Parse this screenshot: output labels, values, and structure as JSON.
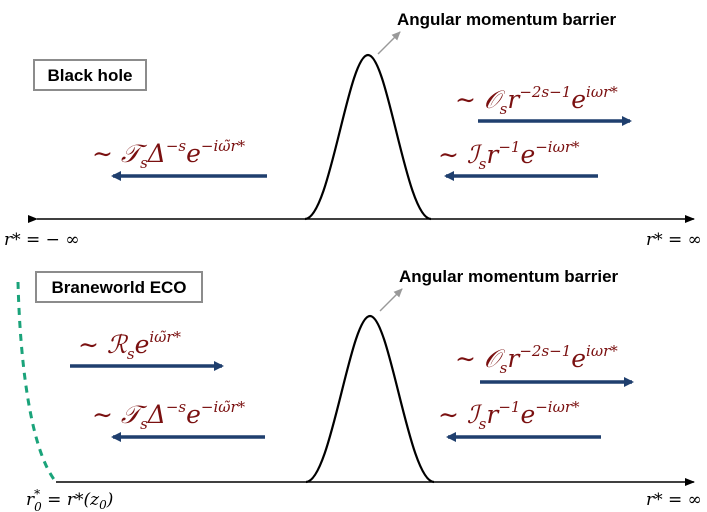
{
  "colors": {
    "arrow": "#1f3f6e",
    "math_text": "#7a1010",
    "curve": "#000000",
    "pointer": "#999999",
    "dashed_boundary": "#1aa37a",
    "box_border": "#8c8c8c"
  },
  "top_panel": {
    "title": "Black hole",
    "barrier_label": "Angular momentum barrier",
    "outgoing_right": {
      "lead": "∼ ",
      "sym": "𝒪",
      "sub": "s",
      "base": "r",
      "exp1": "−2s−1",
      "e": "e",
      "exp2": "iωr*"
    },
    "incoming_right": {
      "lead": "∼ ",
      "sym": "ℐ",
      "sub": "s",
      "base": "r",
      "exp1": "−1",
      "e": "e",
      "exp2": "−iωr*"
    },
    "transmitted_left": {
      "lead": "∼ ",
      "sym": "𝒯",
      "sub": "s",
      "base": "Δ",
      "exp1": "−s",
      "e": "e",
      "exp2": "−iω̃r*"
    },
    "axis_left_label": "r* = − ∞",
    "axis_right_label": "r* = ∞"
  },
  "bottom_panel": {
    "title": "Braneworld ECO",
    "barrier_label": "Angular momentum barrier",
    "reflected_left": {
      "lead": "∼ ",
      "sym": "ℛ",
      "sub": "s",
      "e": "e",
      "exp2": "iω̃r*"
    },
    "transmitted_left": {
      "lead": "∼ ",
      "sym": "𝒯",
      "sub": "s",
      "base": "Δ",
      "exp1": "−s",
      "e": "e",
      "exp2": "−iω̃r*"
    },
    "outgoing_right": {
      "lead": "∼ ",
      "sym": "𝒪",
      "sub": "s",
      "base": "r",
      "exp1": "−2s−1",
      "e": "e",
      "exp2": "iωr*"
    },
    "incoming_right": {
      "lead": "∼ ",
      "sym": "ℐ",
      "sub": "s",
      "base": "r",
      "exp1": "−1",
      "e": "e",
      "exp2": "−iωr*"
    },
    "axis_left_label": {
      "r": "r",
      "star": "*",
      "zero": "0",
      "rest": " = r*(z",
      "z_sub": "0",
      "close": ")"
    },
    "axis_right_label": "r* = ∞"
  }
}
